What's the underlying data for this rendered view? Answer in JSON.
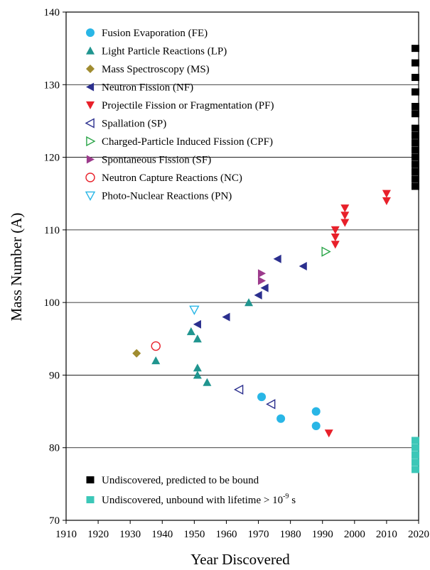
{
  "chart_data": {
    "type": "scatter",
    "title": "",
    "xlabel": "Year Discovered",
    "ylabel": "Mass Number (A)",
    "xlim": [
      1910,
      2020
    ],
    "ylim": [
      70,
      140
    ],
    "x_ticks": [
      1910,
      1920,
      1930,
      1940,
      1950,
      1960,
      1970,
      1980,
      1990,
      2000,
      2010,
      2020
    ],
    "y_ticks": [
      70,
      80,
      90,
      100,
      110,
      120,
      130,
      140
    ],
    "grid": "horizontal",
    "legend_position": "top-left",
    "series": [
      {
        "name": "Fusion Evaporation (FE)",
        "marker": "circle-filled",
        "color": "#29b6e6",
        "points": [
          [
            1971,
            87
          ],
          [
            1977,
            84
          ],
          [
            1988,
            85
          ],
          [
            1988,
            83
          ]
        ]
      },
      {
        "name": "Light Particle Reactions (LP)",
        "marker": "triangle-up-filled",
        "color": "#20958f",
        "points": [
          [
            1938,
            92
          ],
          [
            1949,
            96
          ],
          [
            1951,
            95
          ],
          [
            1951,
            91
          ],
          [
            1951,
            90
          ],
          [
            1954,
            89
          ],
          [
            1967,
            100
          ]
        ]
      },
      {
        "name": "Mass Spectroscopy (MS)",
        "marker": "diamond-filled",
        "color": "#a08c30",
        "points": [
          [
            1932,
            93
          ]
        ]
      },
      {
        "name": "Neutron Fission (NF)",
        "marker": "triangle-left-filled",
        "color": "#2b2f8e",
        "points": [
          [
            1951,
            97
          ],
          [
            1960,
            98
          ],
          [
            1970,
            101
          ],
          [
            1972,
            102
          ],
          [
            1976,
            106
          ],
          [
            1984,
            105
          ]
        ]
      },
      {
        "name": "Projectile Fission or Fragmentation (PF)",
        "marker": "triangle-down-filled",
        "color": "#e8202a",
        "points": [
          [
            1992,
            82
          ],
          [
            1994,
            110
          ],
          [
            1994,
            109
          ],
          [
            1994,
            108
          ],
          [
            1997,
            113
          ],
          [
            1997,
            112
          ],
          [
            1997,
            111
          ],
          [
            2010,
            115
          ],
          [
            2010,
            114
          ]
        ]
      },
      {
        "name": "Spallation (SP)",
        "marker": "triangle-left-open",
        "color": "#2b2f8e",
        "points": [
          [
            1964,
            88
          ],
          [
            1974,
            86
          ]
        ]
      },
      {
        "name": "Charged-Particle Induced Fission (CPF)",
        "marker": "triangle-right-open",
        "color": "#2aa548",
        "points": [
          [
            1991,
            107
          ]
        ]
      },
      {
        "name": "Spontaneous Fission (SF)",
        "marker": "triangle-right-filled",
        "color": "#9c3b8c",
        "points": [
          [
            1971,
            104
          ],
          [
            1971,
            103
          ]
        ]
      },
      {
        "name": "Neutron Capture Reactions (NC)",
        "marker": "circle-open",
        "color": "#e8202a",
        "points": [
          [
            1938,
            94
          ]
        ]
      },
      {
        "name": "Photo-Nuclear Reactions (PN)",
        "marker": "triangle-down-open",
        "color": "#29b6e6",
        "points": [
          [
            1950,
            99
          ]
        ]
      }
    ],
    "undiscovered_bound": {
      "name": "Undiscovered, predicted to be bound",
      "color": "#000000",
      "x": 2019,
      "mass_numbers": [
        116,
        117,
        118,
        119,
        120,
        121,
        122,
        123,
        124,
        126,
        127,
        129,
        131,
        133,
        135
      ]
    },
    "undiscovered_unbound": {
      "name_main": "Undiscovered, unbound with lifetime > 10",
      "name_exponent": "-9",
      "name_unit": " s",
      "color": "#3cc7b8",
      "x": 2019,
      "mass_numbers": [
        77,
        78,
        79,
        80,
        81
      ]
    }
  }
}
